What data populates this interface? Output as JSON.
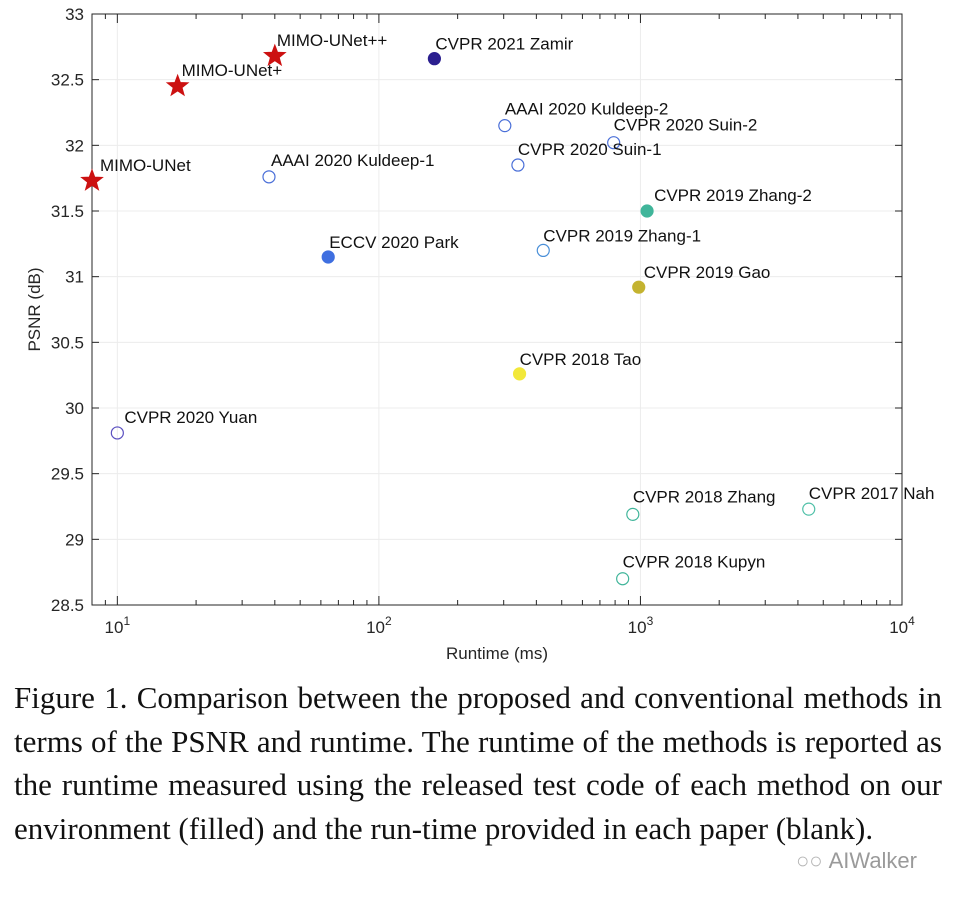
{
  "chart_data": {
    "type": "scatter",
    "title": "",
    "xlabel": "Runtime (ms)",
    "ylabel": "PSNR (dB)",
    "xscale": "log",
    "xlim": [
      8,
      10000
    ],
    "ylim": [
      28.5,
      33
    ],
    "x_ticks": [
      {
        "base": "10",
        "exp": "1"
      },
      {
        "base": "10",
        "exp": "2"
      },
      {
        "base": "10",
        "exp": "3"
      },
      {
        "base": "10",
        "exp": "4"
      }
    ],
    "y_ticks": [
      "28.5",
      "29",
      "29.5",
      "30",
      "30.5",
      "31",
      "31.5",
      "32",
      "32.5",
      "33"
    ],
    "grid": true,
    "points": [
      {
        "label": "MIMO-UNet",
        "x": 8,
        "y": 31.73,
        "marker": "star",
        "filled": true,
        "color": "#cc1111"
      },
      {
        "label": "MIMO-UNet+",
        "x": 17,
        "y": 32.45,
        "marker": "star",
        "filled": true,
        "color": "#cc1111"
      },
      {
        "label": "MIMO-UNet++",
        "x": 40,
        "y": 32.68,
        "marker": "star",
        "filled": true,
        "color": "#cc1111"
      },
      {
        "label": "CVPR 2021 Zamir",
        "x": 163,
        "y": 32.66,
        "marker": "circle",
        "filled": true,
        "color": "#2b1f8f"
      },
      {
        "label": "AAAI 2020 Kuldeep-2",
        "x": 303,
        "y": 32.15,
        "marker": "circle",
        "filled": false,
        "color": "#4a6fd8"
      },
      {
        "label": "CVPR 2020 Suin-2",
        "x": 790,
        "y": 32.02,
        "marker": "circle",
        "filled": false,
        "color": "#4a6fd8"
      },
      {
        "label": "CVPR 2020 Suin-1",
        "x": 340,
        "y": 31.85,
        "marker": "circle",
        "filled": false,
        "color": "#4a6fd8"
      },
      {
        "label": "AAAI 2020 Kuldeep-1",
        "x": 38,
        "y": 31.76,
        "marker": "circle",
        "filled": false,
        "color": "#4a6fd8"
      },
      {
        "label": "CVPR 2019 Zhang-2",
        "x": 1060,
        "y": 31.5,
        "marker": "circle",
        "filled": true,
        "color": "#40b59a"
      },
      {
        "label": "ECCV 2020 Park",
        "x": 64,
        "y": 31.15,
        "marker": "circle",
        "filled": true,
        "color": "#3f6fe0"
      },
      {
        "label": "CVPR 2019 Zhang-1",
        "x": 425,
        "y": 31.2,
        "marker": "circle",
        "filled": false,
        "color": "#4a8fd8"
      },
      {
        "label": "CVPR 2019 Gao",
        "x": 985,
        "y": 30.92,
        "marker": "circle",
        "filled": true,
        "color": "#c4b330"
      },
      {
        "label": "CVPR 2018 Tao",
        "x": 345,
        "y": 30.26,
        "marker": "circle",
        "filled": true,
        "color": "#f2e83a"
      },
      {
        "label": "CVPR 2020 Yuan",
        "x": 10,
        "y": 29.81,
        "marker": "circle",
        "filled": false,
        "color": "#5a4fc0"
      },
      {
        "label": "CVPR 2018 Zhang",
        "x": 935,
        "y": 29.19,
        "marker": "circle",
        "filled": false,
        "color": "#40b59a"
      },
      {
        "label": "CVPR 2017 Nah",
        "x": 4400,
        "y": 29.23,
        "marker": "circle",
        "filled": false,
        "color": "#50c0a8"
      },
      {
        "label": "CVPR 2018 Kupyn",
        "x": 855,
        "y": 28.7,
        "marker": "circle",
        "filled": false,
        "color": "#40b59a"
      }
    ]
  },
  "caption": "Figure 1. Comparison between the proposed and conventional methods in terms of the PSNR and runtime. The runtime of the methods is reported as the runtime measured using the released test code of each method on our environment (filled) and the run-time provided in each paper (blank).",
  "watermark": {
    "icon": "wechat-icon",
    "text": "AIWalker"
  }
}
